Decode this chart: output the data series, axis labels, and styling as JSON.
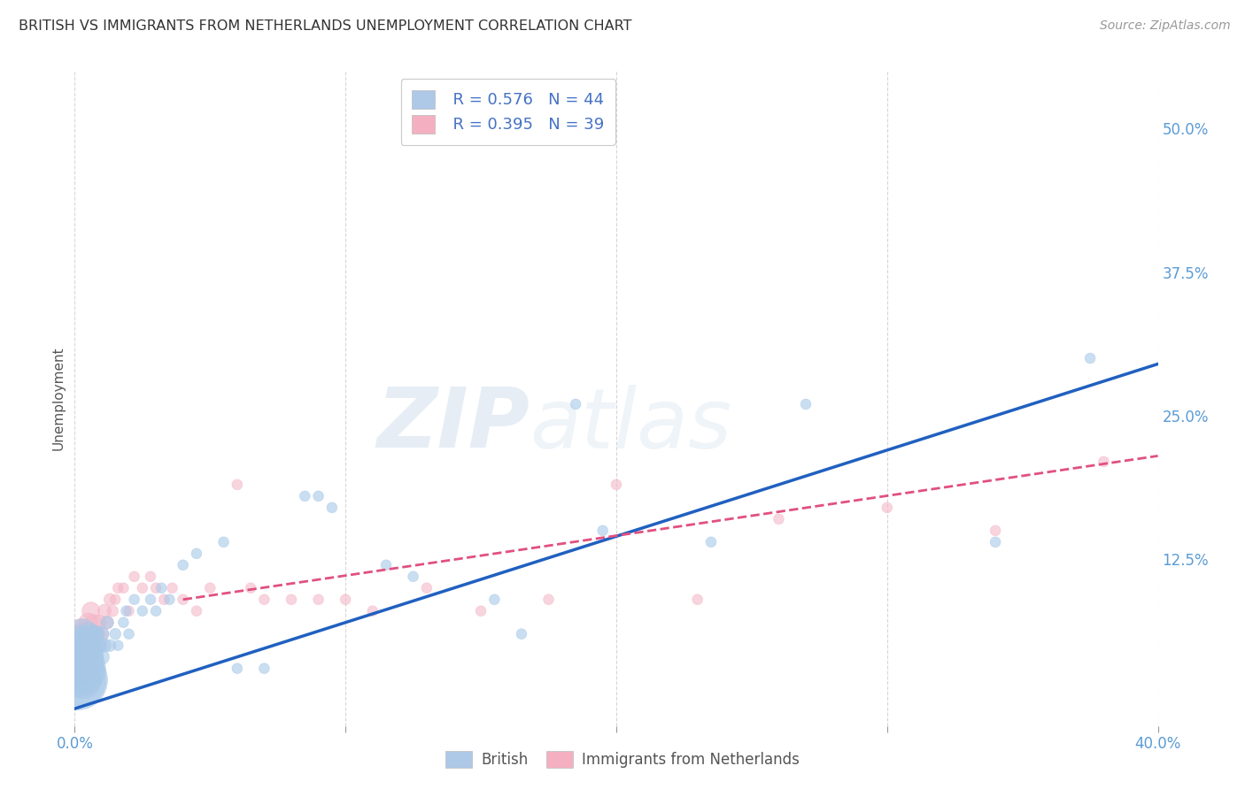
{
  "title": "BRITISH VS IMMIGRANTS FROM NETHERLANDS UNEMPLOYMENT CORRELATION CHART",
  "source": "Source: ZipAtlas.com",
  "ylabel": "Unemployment",
  "xlim": [
    0.0,
    0.4
  ],
  "ylim": [
    -0.02,
    0.55
  ],
  "yticks": [
    0.0,
    0.125,
    0.25,
    0.375,
    0.5
  ],
  "ytick_labels": [
    "",
    "12.5%",
    "25.0%",
    "37.5%",
    "50.0%"
  ],
  "xticks": [
    0.0,
    0.1,
    0.2,
    0.3,
    0.4
  ],
  "xtick_labels": [
    "0.0%",
    "",
    "",
    "",
    "40.0%"
  ],
  "legend_labels": [
    "British",
    "Immigrants from Netherlands"
  ],
  "blue_scatter_color": "#a8c8e8",
  "pink_scatter_color": "#f4b8c8",
  "blue_line_color": "#2060c0",
  "pink_line_color": "#e05080",
  "watermark_zip": "ZIP",
  "watermark_atlas": "atlas",
  "british_x": [
    0.001,
    0.001,
    0.001,
    0.002,
    0.002,
    0.002,
    0.002,
    0.003,
    0.003,
    0.003,
    0.003,
    0.004,
    0.004,
    0.004,
    0.005,
    0.005,
    0.005,
    0.006,
    0.006,
    0.007,
    0.007,
    0.008,
    0.008,
    0.009,
    0.01,
    0.01,
    0.011,
    0.012,
    0.013,
    0.015,
    0.016,
    0.018,
    0.019,
    0.02,
    0.022,
    0.025,
    0.028,
    0.03,
    0.032,
    0.035,
    0.04,
    0.045,
    0.055,
    0.06,
    0.07,
    0.085,
    0.09,
    0.095,
    0.115,
    0.125,
    0.155,
    0.165,
    0.185,
    0.235,
    0.27,
    0.195,
    0.34,
    0.375
  ],
  "british_y": [
    0.02,
    0.03,
    0.04,
    0.02,
    0.03,
    0.04,
    0.05,
    0.02,
    0.03,
    0.05,
    0.06,
    0.03,
    0.04,
    0.05,
    0.03,
    0.04,
    0.06,
    0.04,
    0.05,
    0.04,
    0.06,
    0.05,
    0.06,
    0.05,
    0.04,
    0.06,
    0.05,
    0.07,
    0.05,
    0.06,
    0.05,
    0.07,
    0.08,
    0.06,
    0.09,
    0.08,
    0.09,
    0.08,
    0.1,
    0.09,
    0.12,
    0.13,
    0.14,
    0.03,
    0.03,
    0.18,
    0.18,
    0.17,
    0.12,
    0.11,
    0.09,
    0.06,
    0.26,
    0.14,
    0.26,
    0.15,
    0.14,
    0.3
  ],
  "british_sizes": [
    400,
    350,
    300,
    300,
    250,
    200,
    180,
    150,
    140,
    120,
    100,
    90,
    80,
    70,
    60,
    55,
    50,
    45,
    40,
    38,
    35,
    32,
    30,
    28,
    25,
    22,
    20,
    18,
    16,
    14,
    12,
    12,
    12,
    12,
    12,
    12,
    12,
    12,
    12,
    12,
    12,
    12,
    12,
    12,
    12,
    12,
    12,
    12,
    12,
    12,
    12,
    12,
    12,
    12,
    12,
    12,
    12,
    12
  ],
  "netherlands_x": [
    0.001,
    0.001,
    0.001,
    0.002,
    0.002,
    0.002,
    0.003,
    0.003,
    0.003,
    0.004,
    0.004,
    0.005,
    0.005,
    0.006,
    0.006,
    0.007,
    0.007,
    0.008,
    0.009,
    0.01,
    0.011,
    0.012,
    0.013,
    0.014,
    0.015,
    0.016,
    0.018,
    0.02,
    0.022,
    0.025,
    0.028,
    0.03,
    0.033,
    0.036,
    0.04,
    0.045,
    0.05,
    0.06,
    0.065,
    0.07,
    0.08,
    0.09,
    0.1,
    0.11,
    0.13,
    0.15,
    0.175,
    0.2,
    0.23,
    0.26,
    0.3,
    0.34,
    0.38
  ],
  "netherlands_y": [
    0.03,
    0.04,
    0.05,
    0.03,
    0.04,
    0.06,
    0.03,
    0.05,
    0.06,
    0.04,
    0.06,
    0.04,
    0.07,
    0.05,
    0.08,
    0.05,
    0.07,
    0.06,
    0.07,
    0.06,
    0.08,
    0.07,
    0.09,
    0.08,
    0.09,
    0.1,
    0.1,
    0.08,
    0.11,
    0.1,
    0.11,
    0.1,
    0.09,
    0.1,
    0.09,
    0.08,
    0.1,
    0.19,
    0.1,
    0.09,
    0.09,
    0.09,
    0.09,
    0.08,
    0.1,
    0.08,
    0.09,
    0.19,
    0.09,
    0.16,
    0.17,
    0.15,
    0.21
  ],
  "netherlands_sizes": [
    200,
    180,
    150,
    140,
    120,
    100,
    80,
    70,
    60,
    55,
    50,
    45,
    40,
    38,
    35,
    32,
    30,
    28,
    25,
    22,
    20,
    18,
    16,
    14,
    12,
    12,
    12,
    12,
    12,
    12,
    12,
    12,
    12,
    12,
    12,
    12,
    12,
    12,
    12,
    12,
    12,
    12,
    12,
    12,
    12,
    12,
    12,
    12,
    12,
    12,
    12,
    12,
    12
  ],
  "blue_line_x": [
    0.0,
    0.4
  ],
  "blue_line_y": [
    -0.005,
    0.295
  ],
  "pink_line_x": [
    0.04,
    0.4
  ],
  "pink_line_y": [
    0.09,
    0.215
  ]
}
